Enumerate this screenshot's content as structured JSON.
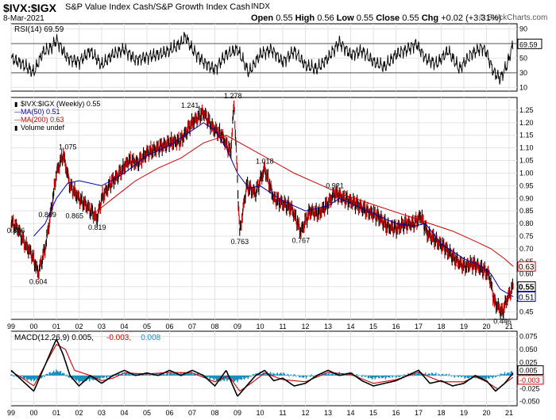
{
  "header": {
    "symbol": "$IVX:$IGX",
    "description": "S&P Value Index Cash/S&P Growth Index Cash",
    "exchange": "INDX",
    "date": "8-Mar-2021",
    "open_label": "Open",
    "open": "0.55",
    "high_label": "High",
    "high": "0.56",
    "low_label": "Low",
    "low": "0.55",
    "close_label": "Close",
    "close": "0.55",
    "chg_label": "Chg",
    "chg": "+0.02 (+3.31%)",
    "watermark": "© StockCharts.com"
  },
  "chart_data": [
    {
      "type": "line",
      "panel": "rsi",
      "title": "RSI(14) 69.59",
      "current_value": "69.59",
      "y_ticks": [
        10,
        30,
        50,
        70,
        90
      ],
      "ylim": [
        5,
        97
      ],
      "reference_lines": [
        30,
        70
      ],
      "series": [
        {
          "name": "RSI(14)",
          "color": "#000000",
          "x": [
            1999.0,
            1999.5,
            2000.0,
            2000.4,
            2000.8,
            2001.0,
            2001.5,
            2002.0,
            2002.5,
            2003.0,
            2003.5,
            2004.0,
            2004.5,
            2005.0,
            2005.5,
            2006.0,
            2006.5,
            2006.7,
            2007.0,
            2007.5,
            2008.0,
            2008.5,
            2009.0,
            2009.5,
            2010.0,
            2010.5,
            2011.0,
            2011.5,
            2012.0,
            2012.5,
            2013.0,
            2013.5,
            2014.0,
            2014.5,
            2015.0,
            2015.5,
            2016.0,
            2016.5,
            2016.9,
            2017.3,
            2017.8,
            2018.3,
            2018.8,
            2019.3,
            2019.8,
            2020.0,
            2020.3,
            2020.6,
            2020.9,
            2021.18
          ],
          "values": [
            50,
            42,
            30,
            58,
            65,
            75,
            50,
            45,
            60,
            40,
            55,
            62,
            48,
            52,
            55,
            60,
            70,
            80,
            62,
            45,
            35,
            55,
            62,
            30,
            55,
            62,
            45,
            60,
            40,
            35,
            50,
            72,
            55,
            60,
            45,
            38,
            55,
            62,
            70,
            50,
            42,
            60,
            35,
            55,
            65,
            58,
            32,
            22,
            40,
            69.59
          ]
        }
      ]
    },
    {
      "type": "line",
      "panel": "price",
      "legend": [
        "$IVX:$IGX (Weekly) 0.55",
        "MA(50) 0.51",
        "MA(200) 0.63",
        "Volume undef"
      ],
      "y_ticks": [
        0.45,
        0.5,
        0.55,
        0.6,
        0.65,
        0.7,
        0.75,
        0.8,
        0.85,
        0.9,
        0.95,
        1.0,
        1.05,
        1.1,
        1.15,
        1.2,
        1.25
      ],
      "ylim": [
        0.42,
        1.3
      ],
      "x_ticks": [
        "99",
        "00",
        "01",
        "02",
        "03",
        "04",
        "05",
        "06",
        "07",
        "08",
        "09",
        "10",
        "11",
        "12",
        "13",
        "14",
        "15",
        "16",
        "17",
        "18",
        "19",
        "20",
        "21"
      ],
      "xlim": [
        1999.0,
        2021.35
      ],
      "price_tags": [
        "0.63",
        "0.55",
        "0.51"
      ],
      "annotations": [
        {
          "x": 1999.0,
          "y": 0.806,
          "label": "0.806"
        },
        {
          "x": 2000.2,
          "y": 0.604,
          "label": "0.604"
        },
        {
          "x": 2000.6,
          "y": 0.869,
          "label": "0.869"
        },
        {
          "x": 2001.5,
          "y": 1.075,
          "label": "1.075"
        },
        {
          "x": 2001.8,
          "y": 0.865,
          "label": "0.865"
        },
        {
          "x": 2002.8,
          "y": 0.819,
          "label": "0.819"
        },
        {
          "x": 2006.9,
          "y": 1.241,
          "label": "1.241"
        },
        {
          "x": 2008.8,
          "y": 1.278,
          "label": "1.278"
        },
        {
          "x": 2009.1,
          "y": 0.763,
          "label": "0.763"
        },
        {
          "x": 2010.2,
          "y": 1.018,
          "label": "1.018"
        },
        {
          "x": 2011.8,
          "y": 0.767,
          "label": "0.767"
        },
        {
          "x": 2013.3,
          "y": 0.921,
          "label": "0.921"
        },
        {
          "x": 2020.7,
          "y": 0.446,
          "label": "0.446"
        }
      ],
      "series": [
        {
          "name": "$IVX:$IGX (Weekly)",
          "color": "#cc0000",
          "x": [
            1999.0,
            1999.3,
            1999.6,
            1999.9,
            2000.2,
            2000.5,
            2000.8,
            2001.0,
            2001.3,
            2001.6,
            2002.0,
            2002.4,
            2002.8,
            2003.0,
            2003.4,
            2003.8,
            2004.2,
            2004.6,
            2005.0,
            2005.5,
            2006.0,
            2006.5,
            2007.0,
            2007.5,
            2007.9,
            2008.3,
            2008.7,
            2008.85,
            2009.1,
            2009.4,
            2009.8,
            2010.2,
            2010.6,
            2011.0,
            2011.4,
            2011.8,
            2012.2,
            2012.6,
            2013.0,
            2013.3,
            2013.7,
            2014.2,
            2014.7,
            2015.2,
            2015.6,
            2016.0,
            2016.4,
            2016.8,
            2017.1,
            2017.4,
            2017.8,
            2018.2,
            2018.6,
            2019.0,
            2019.4,
            2019.8,
            2020.1,
            2020.35,
            2020.7,
            2020.9,
            2021.18
          ],
          "values": [
            0.806,
            0.78,
            0.72,
            0.68,
            0.604,
            0.7,
            0.869,
            1.0,
            1.075,
            0.95,
            0.9,
            0.865,
            0.819,
            0.9,
            0.96,
            1.0,
            1.05,
            1.04,
            1.08,
            1.1,
            1.12,
            1.13,
            1.2,
            1.241,
            1.18,
            1.15,
            1.08,
            1.278,
            0.763,
            0.95,
            0.92,
            1.018,
            0.9,
            0.88,
            0.86,
            0.767,
            0.85,
            0.84,
            0.88,
            0.921,
            0.9,
            0.88,
            0.85,
            0.83,
            0.79,
            0.78,
            0.8,
            0.8,
            0.83,
            0.76,
            0.73,
            0.7,
            0.66,
            0.63,
            0.64,
            0.62,
            0.6,
            0.49,
            0.446,
            0.5,
            0.55
          ]
        },
        {
          "name": "MA(50)",
          "color": "#0000aa",
          "x": [
            2000.0,
            2000.5,
            2001.0,
            2001.5,
            2002.0,
            2003.0,
            2004.0,
            2005.0,
            2006.0,
            2007.0,
            2007.5,
            2008.0,
            2008.5,
            2009.0,
            2009.5,
            2010.0,
            2011.0,
            2012.0,
            2013.0,
            2013.5,
            2014.0,
            2015.0,
            2016.0,
            2016.8,
            2017.3,
            2018.0,
            2019.0,
            2019.8,
            2020.2,
            2020.6,
            2021.18
          ],
          "values": [
            0.75,
            0.8,
            0.9,
            0.96,
            0.97,
            0.95,
            1.0,
            1.07,
            1.11,
            1.17,
            1.2,
            1.17,
            1.1,
            1.0,
            0.94,
            0.95,
            0.89,
            0.85,
            0.87,
            0.9,
            0.88,
            0.84,
            0.8,
            0.79,
            0.8,
            0.72,
            0.66,
            0.63,
            0.6,
            0.54,
            0.51
          ]
        },
        {
          "name": "MA(200)",
          "color": "#cc0000",
          "x": [
            2002.8,
            2003.5,
            2004.5,
            2005.5,
            2006.5,
            2007.5,
            2008.5,
            2009.5,
            2010.5,
            2011.5,
            2012.5,
            2013.5,
            2014.5,
            2015.5,
            2016.5,
            2017.5,
            2018.5,
            2019.5,
            2020.2,
            2020.8,
            2021.18
          ],
          "values": [
            0.85,
            0.9,
            0.97,
            1.02,
            1.06,
            1.12,
            1.15,
            1.1,
            1.05,
            1.0,
            0.96,
            0.92,
            0.89,
            0.86,
            0.83,
            0.8,
            0.77,
            0.73,
            0.7,
            0.66,
            0.63
          ]
        }
      ]
    },
    {
      "type": "line",
      "panel": "macd",
      "title": "MACD(12,26,9) 0.005, -0.003, 0.008",
      "legend": [
        {
          "label": "MACD(12,26,9)",
          "value": "0.005",
          "color": "#000000"
        },
        {
          "label": "",
          "value": "-0.003",
          "color": "#cc0000"
        },
        {
          "label": "",
          "value": "0.008",
          "color": "#1a8fbf"
        }
      ],
      "y_ticks": [
        0.075,
        0.05,
        0.025,
        0.0,
        -0.025,
        -0.05
      ],
      "ylim": [
        -0.058,
        0.085
      ],
      "price_tags": [
        "0.005",
        "-0.003"
      ],
      "series": [
        {
          "name": "MACD",
          "color": "#000000",
          "x": [
            1999.0,
            1999.5,
            2000.0,
            2000.4,
            2000.8,
            2001.0,
            2001.3,
            2001.6,
            2002.0,
            2002.5,
            2003.0,
            2003.5,
            2004.0,
            2004.5,
            2005.0,
            2005.5,
            2006.0,
            2006.5,
            2007.0,
            2007.5,
            2008.0,
            2008.5,
            2009.0,
            2009.4,
            2009.8,
            2010.2,
            2010.6,
            2011.0,
            2011.5,
            2012.0,
            2012.5,
            2013.0,
            2013.5,
            2014.0,
            2014.5,
            2015.0,
            2015.5,
            2016.0,
            2016.5,
            2017.0,
            2017.5,
            2018.0,
            2018.5,
            2019.0,
            2019.5,
            2020.0,
            2020.4,
            2020.8,
            2021.18
          ],
          "values": [
            0.01,
            -0.01,
            -0.03,
            0.01,
            0.05,
            0.07,
            0.04,
            0.0,
            -0.02,
            0.0,
            -0.015,
            0.0,
            0.01,
            0.0,
            0.005,
            0.0,
            0.01,
            0.0,
            0.01,
            0.0,
            -0.02,
            0.01,
            -0.04,
            -0.02,
            0.0,
            0.01,
            -0.01,
            -0.005,
            -0.02,
            -0.015,
            0.0,
            0.01,
            0.0,
            0.005,
            -0.01,
            -0.02,
            -0.015,
            -0.01,
            0.0,
            0.01,
            -0.015,
            -0.01,
            -0.02,
            -0.015,
            0.0,
            -0.01,
            -0.03,
            -0.015,
            0.005
          ]
        },
        {
          "name": "Signal",
          "color": "#cc0000",
          "x": [
            1999.0,
            1999.5,
            2000.0,
            2000.5,
            2001.0,
            2001.4,
            2001.8,
            2002.5,
            2003.0,
            2003.5,
            2004.0,
            2005.0,
            2006.0,
            2007.0,
            2008.0,
            2008.6,
            2009.1,
            2009.6,
            2010.2,
            2011.0,
            2012.0,
            2013.0,
            2014.0,
            2015.0,
            2016.0,
            2017.0,
            2018.0,
            2019.0,
            2019.5,
            2020.0,
            2020.5,
            2020.9,
            2021.18
          ],
          "values": [
            0.008,
            -0.005,
            -0.02,
            0.02,
            0.06,
            0.05,
            0.01,
            0.0,
            -0.01,
            -0.005,
            0.005,
            0.003,
            0.006,
            0.005,
            -0.012,
            0.0,
            -0.03,
            -0.015,
            0.005,
            -0.008,
            -0.012,
            0.006,
            0.002,
            -0.015,
            -0.008,
            0.006,
            -0.012,
            -0.012,
            -0.002,
            -0.012,
            -0.026,
            -0.012,
            -0.003
          ]
        },
        {
          "name": "Histogram",
          "color": "#1a8fbf",
          "x": [
            1999.0,
            2000.0,
            2001.0,
            2002.0,
            2003.0,
            2004.0,
            2005.0,
            2006.0,
            2007.0,
            2008.0,
            2009.0,
            2010.0,
            2011.0,
            2012.0,
            2013.0,
            2014.0,
            2015.0,
            2016.0,
            2017.0,
            2018.0,
            2019.0,
            2020.0,
            2021.18
          ],
          "values": [
            0.002,
            -0.01,
            0.01,
            -0.012,
            -0.005,
            0.004,
            0.002,
            0.004,
            0.005,
            -0.008,
            -0.01,
            0.005,
            0.003,
            -0.003,
            0.004,
            0.003,
            -0.005,
            -0.002,
            0.004,
            0.002,
            -0.003,
            -0.006,
            0.008
          ]
        }
      ]
    }
  ]
}
